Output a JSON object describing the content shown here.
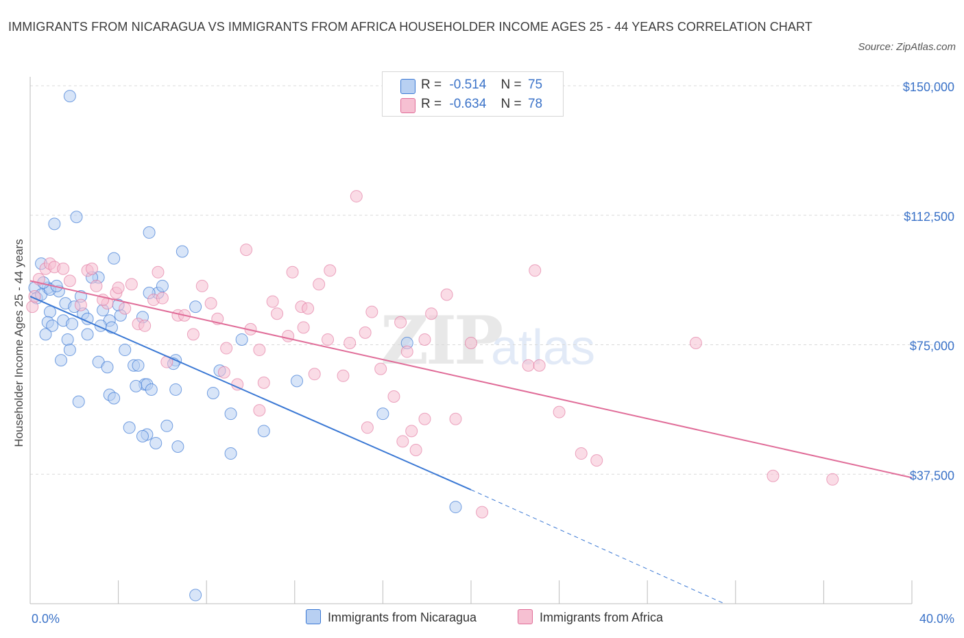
{
  "header": {
    "title": "IMMIGRANTS FROM NICARAGUA VS IMMIGRANTS FROM AFRICA HOUSEHOLDER INCOME AGES 25 - 44 YEARS CORRELATION CHART",
    "source": "Source: ZipAtlas.com"
  },
  "watermark": {
    "zip": "ZIP",
    "atlas": "atlas"
  },
  "legend_top": {
    "row1": {
      "r_label": "R =",
      "r_value": "-0.514",
      "n_label": "N =",
      "n_value": "75"
    },
    "row2": {
      "r_label": "R =",
      "r_value": "-0.634",
      "n_label": "N =",
      "n_value": "78"
    }
  },
  "legend_bottom": {
    "item1": "Immigrants from Nicaragua",
    "item2": "Immigrants from Africa"
  },
  "colors": {
    "blue": "#3a78d4",
    "blue_fill": "#b8d0f2",
    "pink": "#e06c98",
    "pink_fill": "#f6c0d2",
    "tick_text": "#3a72c8"
  },
  "chart_data": {
    "type": "scatter",
    "title": "IMMIGRANTS FROM NICARAGUA VS IMMIGRANTS FROM AFRICA HOUSEHOLDER INCOME AGES 25 - 44 YEARS CORRELATION CHART",
    "xlabel": "",
    "ylabel": "Householder Income Ages 25 - 44 years",
    "xlim": [
      0,
      40
    ],
    "ylim": [
      0,
      150000
    ],
    "x_tick_labels": [
      "0.0%",
      "40.0%"
    ],
    "y_ticks": [
      37500,
      75000,
      112500,
      150000
    ],
    "y_tick_labels": [
      "$37,500",
      "$75,000",
      "$112,500",
      "$150,000"
    ],
    "grid": "horizontal dashed",
    "legend": "bottom-center",
    "series": [
      {
        "name": "Immigrants from Nicaragua",
        "R": -0.514,
        "N": 75,
        "trend": {
          "x1": 0,
          "y1": 89000,
          "x2": 20,
          "y2": 33000,
          "dash_to_x": 31.5,
          "dash_to_y": 0
        },
        "points": [
          [
            1.8,
            147000
          ],
          [
            2.1,
            112000
          ],
          [
            1.1,
            110000
          ],
          [
            5.4,
            107500
          ],
          [
            6.9,
            102000
          ],
          [
            3.8,
            100000
          ],
          [
            0.5,
            98500
          ],
          [
            3.1,
            94500
          ],
          [
            2.8,
            94500
          ],
          [
            0.2,
            91500
          ],
          [
            0.8,
            91500
          ],
          [
            1.3,
            90500
          ],
          [
            5.8,
            90000
          ],
          [
            5.4,
            90000
          ],
          [
            2.3,
            89000
          ],
          [
            0.3,
            88500
          ],
          [
            1.6,
            87000
          ],
          [
            7.5,
            86000
          ],
          [
            3.3,
            85000
          ],
          [
            0.9,
            84500
          ],
          [
            2.4,
            84000
          ],
          [
            4.1,
            83500
          ],
          [
            5.1,
            83000
          ],
          [
            2.6,
            82500
          ],
          [
            1.5,
            82000
          ],
          [
            3.6,
            82000
          ],
          [
            0.8,
            81500
          ],
          [
            1.9,
            81000
          ],
          [
            3.2,
            80500
          ],
          [
            3.7,
            80000
          ],
          [
            1.0,
            80500
          ],
          [
            0.7,
            78000
          ],
          [
            2.6,
            78000
          ],
          [
            1.7,
            76500
          ],
          [
            9.6,
            76500
          ],
          [
            17.1,
            75500
          ],
          [
            1.8,
            73500
          ],
          [
            4.3,
            73500
          ],
          [
            1.4,
            70500
          ],
          [
            6.6,
            70500
          ],
          [
            3.1,
            70000
          ],
          [
            6.5,
            69500
          ],
          [
            4.7,
            69000
          ],
          [
            4.9,
            69000
          ],
          [
            3.5,
            68500
          ],
          [
            8.6,
            67500
          ],
          [
            12.1,
            64500
          ],
          [
            5.2,
            63500
          ],
          [
            5.3,
            63500
          ],
          [
            4.8,
            63000
          ],
          [
            6.6,
            62000
          ],
          [
            5.5,
            62000
          ],
          [
            8.3,
            61000
          ],
          [
            3.6,
            60500
          ],
          [
            3.8,
            59500
          ],
          [
            2.2,
            58500
          ],
          [
            9.1,
            55000
          ],
          [
            16.0,
            55000
          ],
          [
            6.2,
            51500
          ],
          [
            4.5,
            51000
          ],
          [
            10.6,
            50000
          ],
          [
            5.3,
            49000
          ],
          [
            5.1,
            48500
          ],
          [
            5.7,
            46500
          ],
          [
            6.7,
            45500
          ],
          [
            9.1,
            43500
          ],
          [
            19.3,
            28000
          ],
          [
            7.5,
            2500
          ],
          [
            0.5,
            89500
          ],
          [
            0.9,
            91000
          ],
          [
            1.2,
            92000
          ],
          [
            0.6,
            93000
          ],
          [
            2.0,
            86000
          ],
          [
            4.0,
            86500
          ],
          [
            6.0,
            92000
          ]
        ]
      },
      {
        "name": "Immigrants from Africa",
        "R": -0.634,
        "N": 78,
        "trend": {
          "x1": 0,
          "y1": 93500,
          "x2": 40,
          "y2": 36500
        },
        "points": [
          [
            0.1,
            86000
          ],
          [
            0.2,
            89000
          ],
          [
            0.4,
            94000
          ],
          [
            0.7,
            97000
          ],
          [
            0.9,
            98500
          ],
          [
            1.1,
            97500
          ],
          [
            1.5,
            97000
          ],
          [
            1.8,
            93500
          ],
          [
            2.6,
            96500
          ],
          [
            2.8,
            97000
          ],
          [
            3.0,
            92000
          ],
          [
            2.3,
            86500
          ],
          [
            3.5,
            87000
          ],
          [
            3.9,
            90000
          ],
          [
            4.0,
            91500
          ],
          [
            4.3,
            85500
          ],
          [
            4.6,
            92500
          ],
          [
            4.9,
            81000
          ],
          [
            5.2,
            80500
          ],
          [
            5.6,
            88000
          ],
          [
            5.8,
            96000
          ],
          [
            6.0,
            88500
          ],
          [
            6.2,
            70000
          ],
          [
            6.7,
            83500
          ],
          [
            7.0,
            83500
          ],
          [
            7.4,
            78000
          ],
          [
            7.8,
            92000
          ],
          [
            8.2,
            87000
          ],
          [
            8.5,
            82500
          ],
          [
            8.8,
            67000
          ],
          [
            8.9,
            74000
          ],
          [
            9.4,
            63500
          ],
          [
            9.8,
            102500
          ],
          [
            10.0,
            79500
          ],
          [
            10.4,
            73500
          ],
          [
            10.6,
            64000
          ],
          [
            10.4,
            56000
          ],
          [
            11.0,
            87500
          ],
          [
            11.2,
            84000
          ],
          [
            11.7,
            77500
          ],
          [
            11.9,
            96000
          ],
          [
            12.3,
            86000
          ],
          [
            12.6,
            85500
          ],
          [
            12.9,
            66500
          ],
          [
            13.1,
            92500
          ],
          [
            13.5,
            76500
          ],
          [
            13.6,
            96500
          ],
          [
            14.2,
            66000
          ],
          [
            14.5,
            75500
          ],
          [
            14.8,
            118000
          ],
          [
            15.2,
            78500
          ],
          [
            15.3,
            51000
          ],
          [
            15.5,
            84500
          ],
          [
            15.9,
            68000
          ],
          [
            16.5,
            60000
          ],
          [
            16.8,
            81500
          ],
          [
            17.1,
            73000
          ],
          [
            17.3,
            50000
          ],
          [
            17.5,
            44500
          ],
          [
            17.9,
            76500
          ],
          [
            17.9,
            53500
          ],
          [
            18.2,
            84000
          ],
          [
            18.9,
            89500
          ],
          [
            19.3,
            53500
          ],
          [
            20.0,
            75500
          ],
          [
            20.5,
            26500
          ],
          [
            22.6,
            69000
          ],
          [
            22.9,
            96500
          ],
          [
            23.1,
            69000
          ],
          [
            24.0,
            55500
          ],
          [
            25.0,
            43500
          ],
          [
            25.7,
            41500
          ],
          [
            30.2,
            75500
          ],
          [
            33.7,
            37000
          ],
          [
            36.4,
            36000
          ],
          [
            16.9,
            47000
          ],
          [
            12.4,
            80000
          ],
          [
            3.3,
            88000
          ]
        ]
      }
    ]
  }
}
